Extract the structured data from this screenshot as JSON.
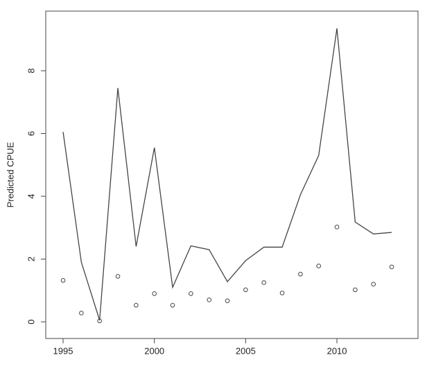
{
  "chart_data": {
    "type": "line",
    "y_label": "Predicted CPUE",
    "x": [
      1995,
      1996,
      1997,
      1998,
      1999,
      2000,
      2001,
      2002,
      2003,
      2004,
      2005,
      2006,
      2007,
      2008,
      2009,
      2010,
      2011,
      2012,
      2013
    ],
    "series": [
      {
        "style": "line",
        "color": "#444444",
        "values": [
          6.05,
          1.9,
          0.05,
          7.45,
          2.4,
          5.55,
          1.1,
          2.42,
          2.3,
          1.28,
          1.95,
          2.38,
          2.38,
          4.05,
          5.3,
          9.35,
          3.18,
          2.8,
          2.85
        ]
      },
      {
        "style": "points",
        "color": "#444444",
        "values": [
          1.32,
          0.28,
          0.03,
          1.45,
          0.53,
          0.9,
          0.53,
          0.9,
          0.7,
          0.67,
          1.02,
          1.25,
          0.92,
          1.52,
          1.78,
          3.02,
          1.02,
          1.2,
          1.75
        ]
      }
    ],
    "xlim": [
      1994.05,
      2014.44
    ],
    "xticks": [
      1995,
      2000,
      2005,
      2010
    ],
    "ylim": [
      -0.53,
      9.9
    ],
    "yticks": [
      0,
      2,
      4,
      6,
      8
    ]
  }
}
